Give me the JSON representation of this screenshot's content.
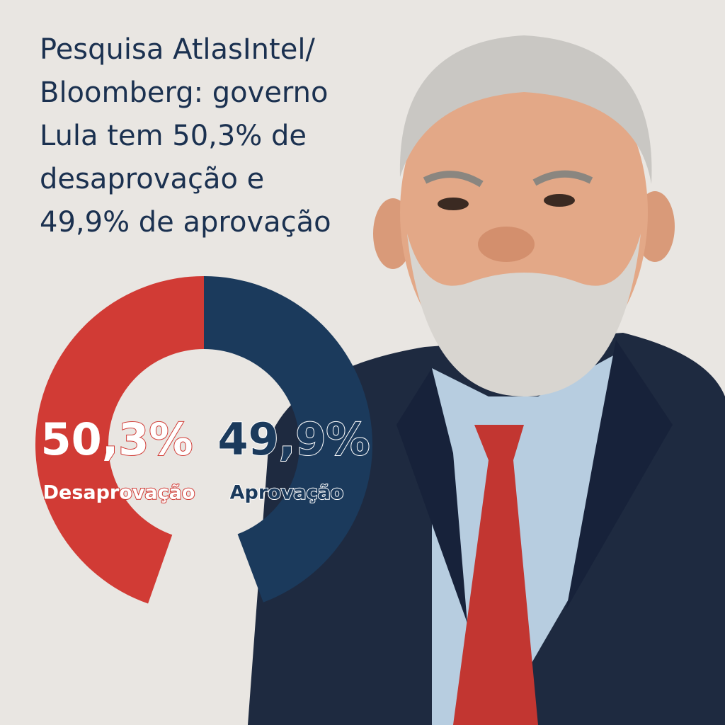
{
  "chart_data": {
    "type": "donut",
    "title": "Pesquisa AtlasIntel/\nBloomberg: governo\nLula tem 50,3% de\ndesaprovação e\n49,9% de aprovação",
    "categories": [
      "Desaprovação",
      "Aprovação"
    ],
    "values": [
      50.3,
      49.9
    ],
    "value_labels": [
      "50,3%",
      "49,9%"
    ],
    "colors": [
      "#d13b35",
      "#1b3a5c"
    ]
  }
}
